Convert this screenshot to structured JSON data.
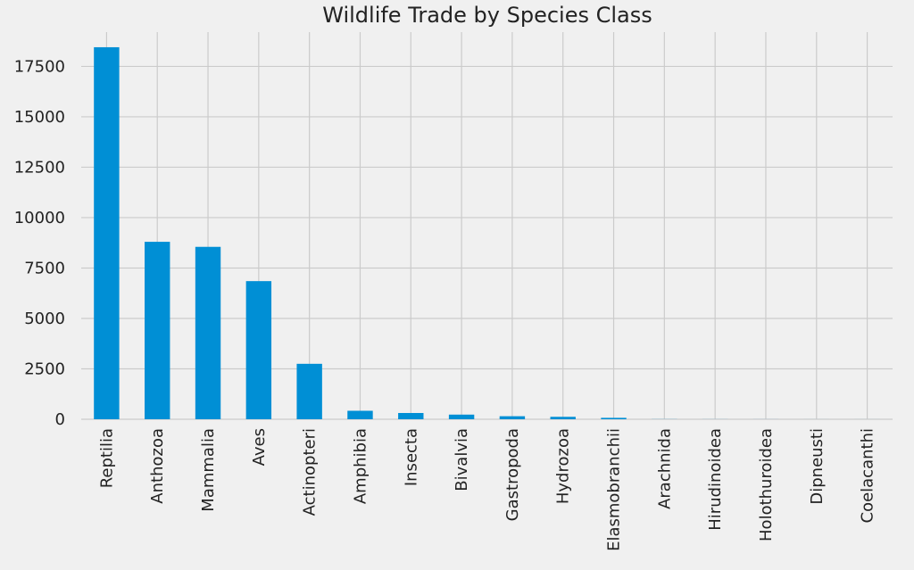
{
  "chart_data": {
    "type": "bar",
    "title": "Wildlife Trade by Species Class",
    "xlabel": "",
    "ylabel": "",
    "categories": [
      "Reptilia",
      "Anthozoa",
      "Mammalia",
      "Aves",
      "Actinopteri",
      "Amphibia",
      "Insecta",
      "Bivalvia",
      "Gastropoda",
      "Hydrozoa",
      "Elasmobranchii",
      "Arachnida",
      "Hirudinoidea",
      "Holothuroidea",
      "Dipneusti",
      "Coelacanthi"
    ],
    "values": [
      18450,
      8800,
      8550,
      6850,
      2750,
      420,
      310,
      230,
      150,
      120,
      70,
      5,
      3,
      2,
      1,
      1
    ],
    "ylim": [
      0,
      19200
    ],
    "yticks": [
      0,
      2500,
      5000,
      7500,
      10000,
      12500,
      15000,
      17500
    ],
    "grid": true,
    "bar_color": "#008fd5"
  }
}
